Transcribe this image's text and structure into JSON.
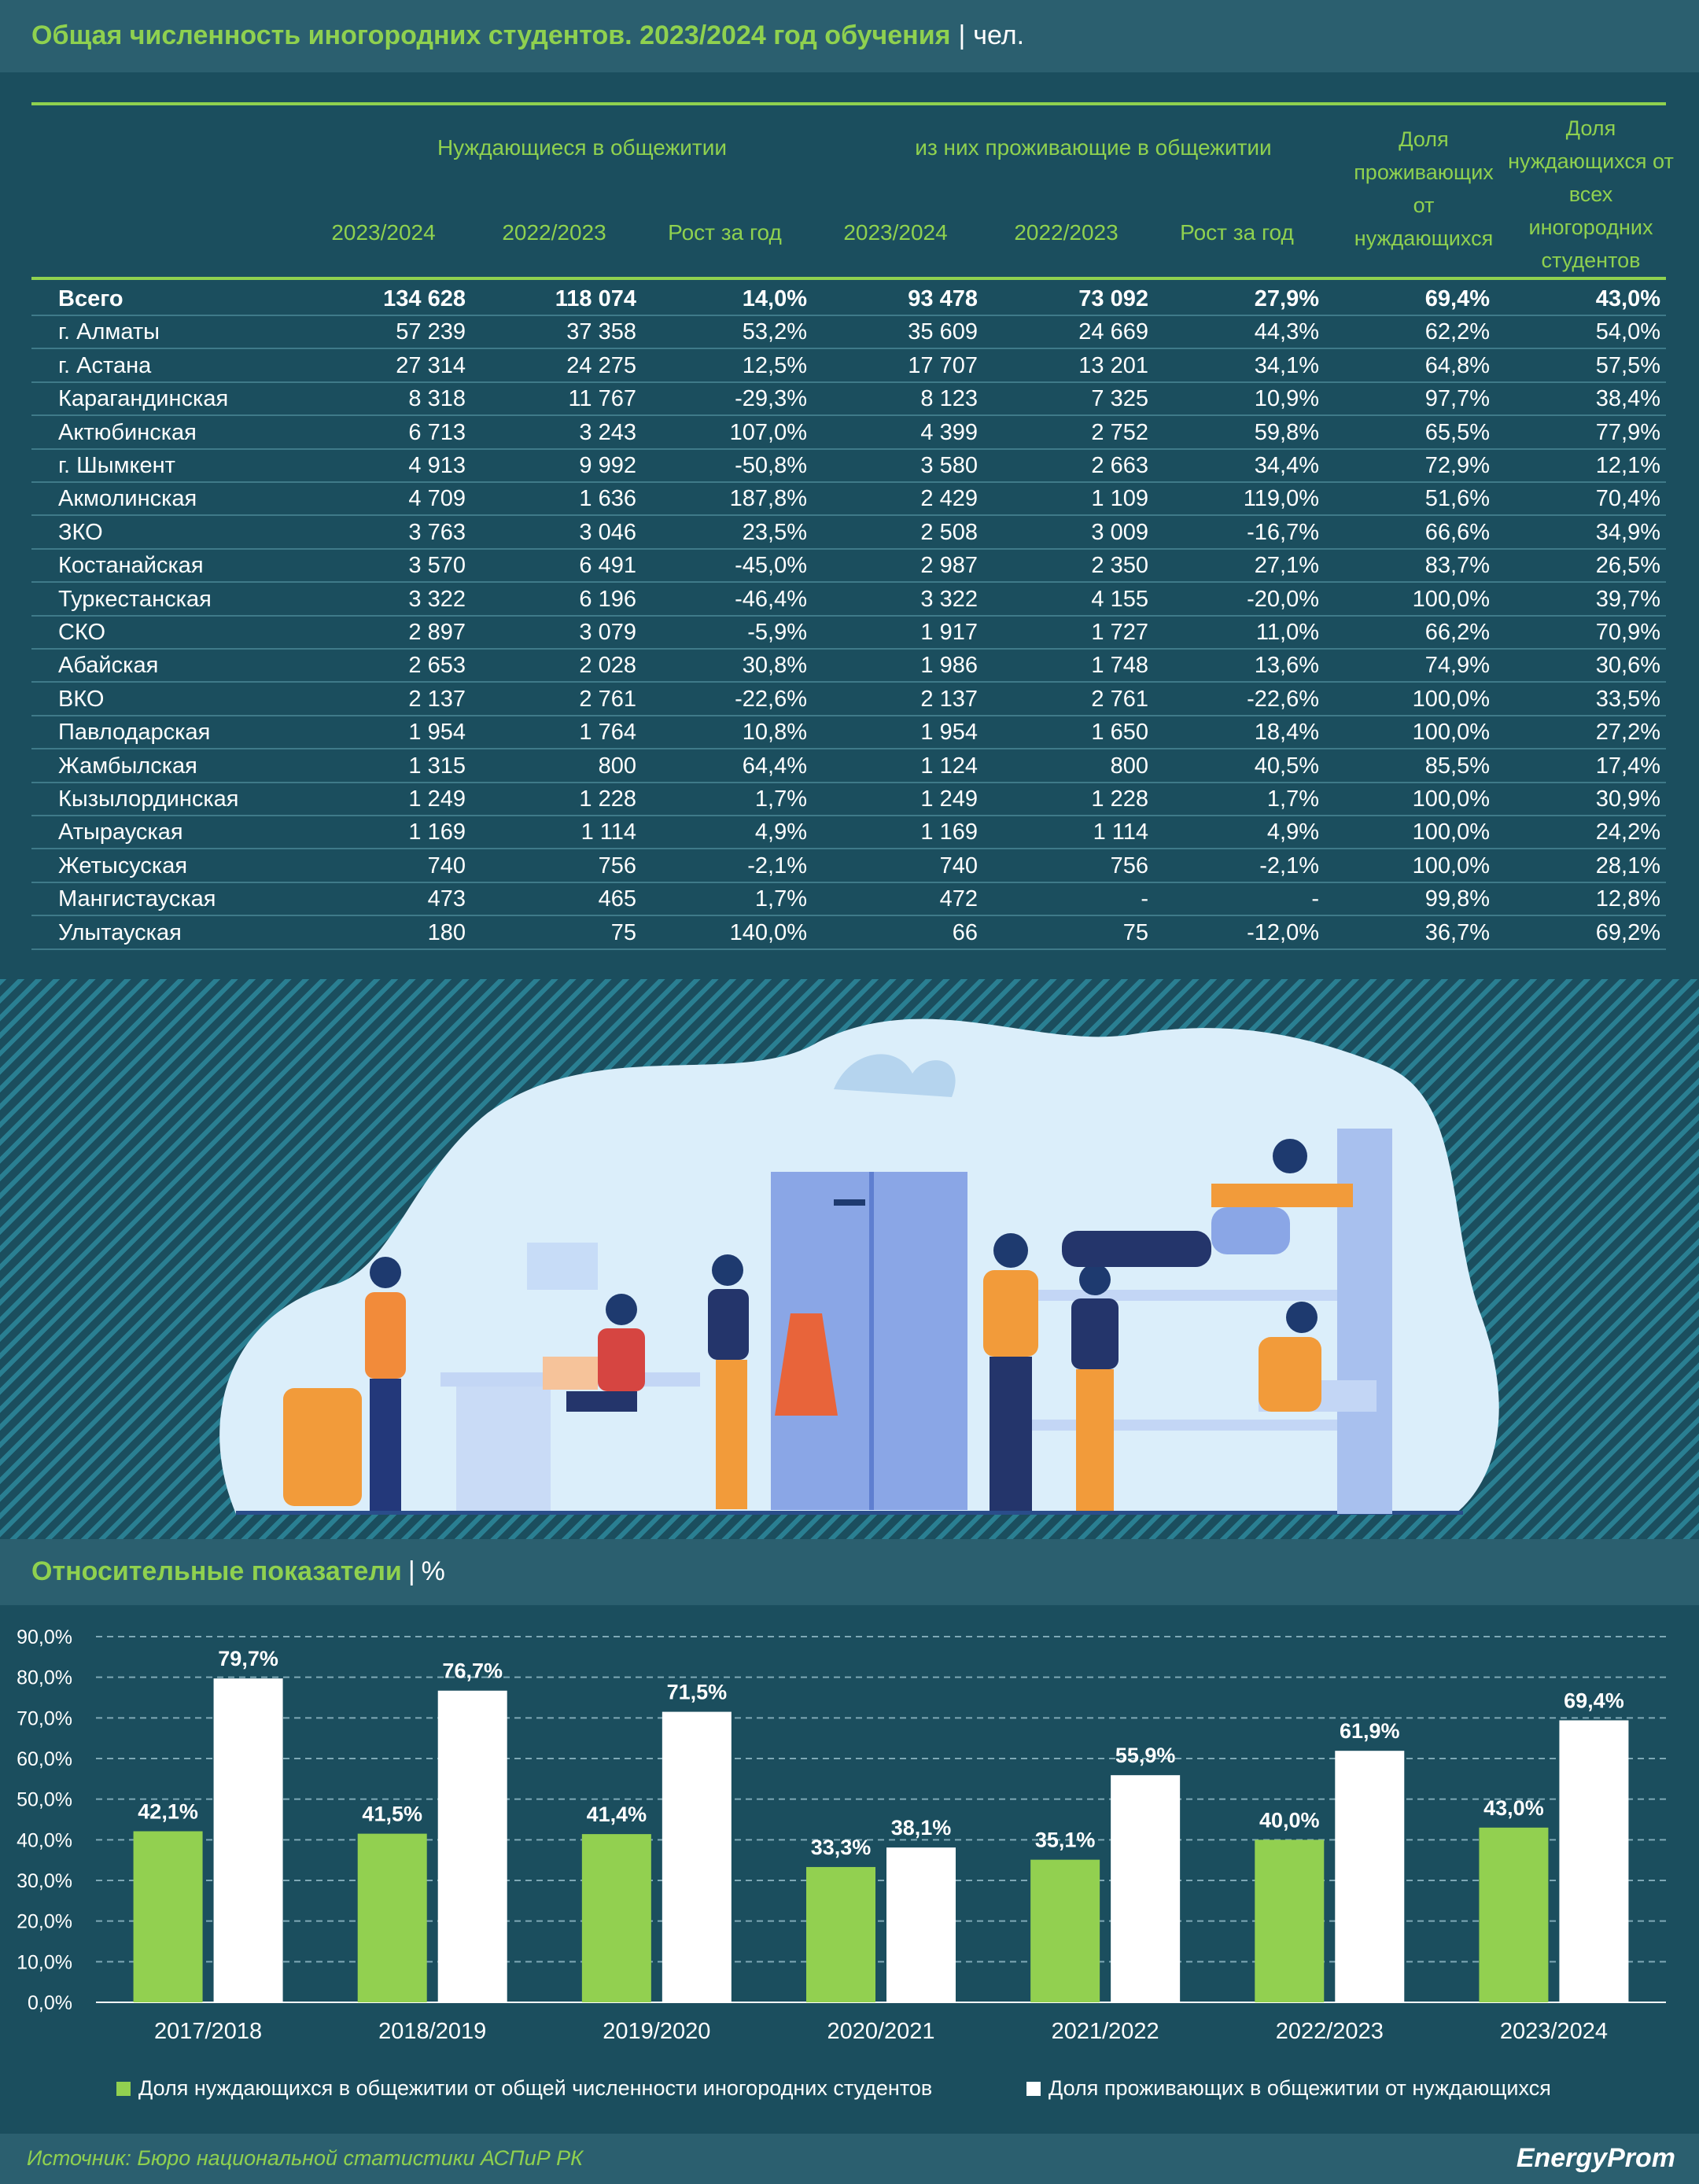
{
  "header": {
    "title": "Общая численность иногородних студентов. 2023/2024 год обучения",
    "separator": "|",
    "unit": "чел."
  },
  "table": {
    "group_headers": [
      "Нуждающиеся в общежитии",
      "из них проживающие в общежитии"
    ],
    "share_headers": [
      "Доля проживающих от нуждающихся",
      "Доля нуждающихся от всех иногородних студентов"
    ],
    "columns": [
      "2023/2024",
      "2022/2023",
      "Рост за год",
      "2023/2024",
      "2022/2023",
      "Рост за год"
    ],
    "rows": [
      [
        "Всего",
        "134 628",
        "118 074",
        "14,0%",
        "93 478",
        "73 092",
        "27,9%",
        "69,4%",
        "43,0%"
      ],
      [
        "г. Алматы",
        "57 239",
        "37 358",
        "53,2%",
        "35 609",
        "24 669",
        "44,3%",
        "62,2%",
        "54,0%"
      ],
      [
        "г. Астана",
        "27 314",
        "24 275",
        "12,5%",
        "17 707",
        "13 201",
        "34,1%",
        "64,8%",
        "57,5%"
      ],
      [
        "Карагандинская",
        "8 318",
        "11 767",
        "-29,3%",
        "8 123",
        "7 325",
        "10,9%",
        "97,7%",
        "38,4%"
      ],
      [
        "Актюбинская",
        "6 713",
        "3 243",
        "107,0%",
        "4 399",
        "2 752",
        "59,8%",
        "65,5%",
        "77,9%"
      ],
      [
        "г. Шымкент",
        "4 913",
        "9 992",
        "-50,8%",
        "3 580",
        "2 663",
        "34,4%",
        "72,9%",
        "12,1%"
      ],
      [
        "Акмолинская",
        "4 709",
        "1 636",
        "187,8%",
        "2 429",
        "1 109",
        "119,0%",
        "51,6%",
        "70,4%"
      ],
      [
        "ЗКО",
        "3 763",
        "3 046",
        "23,5%",
        "2 508",
        "3 009",
        "-16,7%",
        "66,6%",
        "34,9%"
      ],
      [
        "Костанайская",
        "3 570",
        "6 491",
        "-45,0%",
        "2 987",
        "2 350",
        "27,1%",
        "83,7%",
        "26,5%"
      ],
      [
        "Туркестанская",
        "3 322",
        "6 196",
        "-46,4%",
        "3 322",
        "4 155",
        "-20,0%",
        "100,0%",
        "39,7%"
      ],
      [
        "СКО",
        "2 897",
        "3 079",
        "-5,9%",
        "1 917",
        "1 727",
        "11,0%",
        "66,2%",
        "70,9%"
      ],
      [
        "Абайская",
        "2 653",
        "2 028",
        "30,8%",
        "1 986",
        "1 748",
        "13,6%",
        "74,9%",
        "30,6%"
      ],
      [
        "ВКО",
        "2 137",
        "2 761",
        "-22,6%",
        "2 137",
        "2 761",
        "-22,6%",
        "100,0%",
        "33,5%"
      ],
      [
        "Павлодарская",
        "1 954",
        "1 764",
        "10,8%",
        "1 954",
        "1 650",
        "18,4%",
        "100,0%",
        "27,2%"
      ],
      [
        "Жамбылская",
        "1 315",
        "800",
        "64,4%",
        "1 124",
        "800",
        "40,5%",
        "85,5%",
        "17,4%"
      ],
      [
        "Кызылординская",
        "1 249",
        "1 228",
        "1,7%",
        "1 249",
        "1 228",
        "1,7%",
        "100,0%",
        "30,9%"
      ],
      [
        "Атырауская",
        "1 169",
        "1 114",
        "4,9%",
        "1 169",
        "1 114",
        "4,9%",
        "100,0%",
        "24,2%"
      ],
      [
        "Жетысуская",
        "740",
        "756",
        "-2,1%",
        "740",
        "756",
        "-2,1%",
        "100,0%",
        "28,1%"
      ],
      [
        "Мангистауская",
        "473",
        "465",
        "1,7%",
        "472",
        "-",
        "-",
        "99,8%",
        "12,8%"
      ],
      [
        "Улытауская",
        "180",
        "75",
        "140,0%",
        "66",
        "75",
        "-12,0%",
        "36,7%",
        "69,2%"
      ]
    ]
  },
  "subheader": {
    "title": "Относительные показатели",
    "separator": "|",
    "unit": "%"
  },
  "chart_data": {
    "type": "bar",
    "categories": [
      "2017/2018",
      "2018/2019",
      "2019/2020",
      "2020/2021",
      "2021/2022",
      "2022/2023",
      "2023/2024"
    ],
    "series": [
      {
        "name": "Доля нуждающихся в общежитии от общей численности иногородних студентов",
        "values": [
          42.1,
          41.5,
          41.4,
          33.3,
          35.1,
          40.0,
          43.0
        ],
        "labels": [
          "42,1%",
          "41,5%",
          "41,4%",
          "33,3%",
          "35,1%",
          "40,0%",
          "43,0%"
        ],
        "color": "#92d050"
      },
      {
        "name": "Доля проживающих в общежитии от нуждающихся",
        "values": [
          79.7,
          76.7,
          71.5,
          38.1,
          55.9,
          61.9,
          69.4
        ],
        "labels": [
          "79,7%",
          "76,7%",
          "71,5%",
          "38,1%",
          "55,9%",
          "61,9%",
          "69,4%"
        ],
        "color": "#ffffff"
      }
    ],
    "ylim": [
      0,
      90
    ],
    "yticks": [
      "0,0%",
      "10,0%",
      "20,0%",
      "30,0%",
      "40,0%",
      "50,0%",
      "60,0%",
      "70,0%",
      "80,0%",
      "90,0%"
    ],
    "grid": true,
    "legend": "bottom"
  },
  "footer": {
    "source": "Источник: Бюро национальной статистики АСПиР РК",
    "brand": "EnergyProm"
  }
}
